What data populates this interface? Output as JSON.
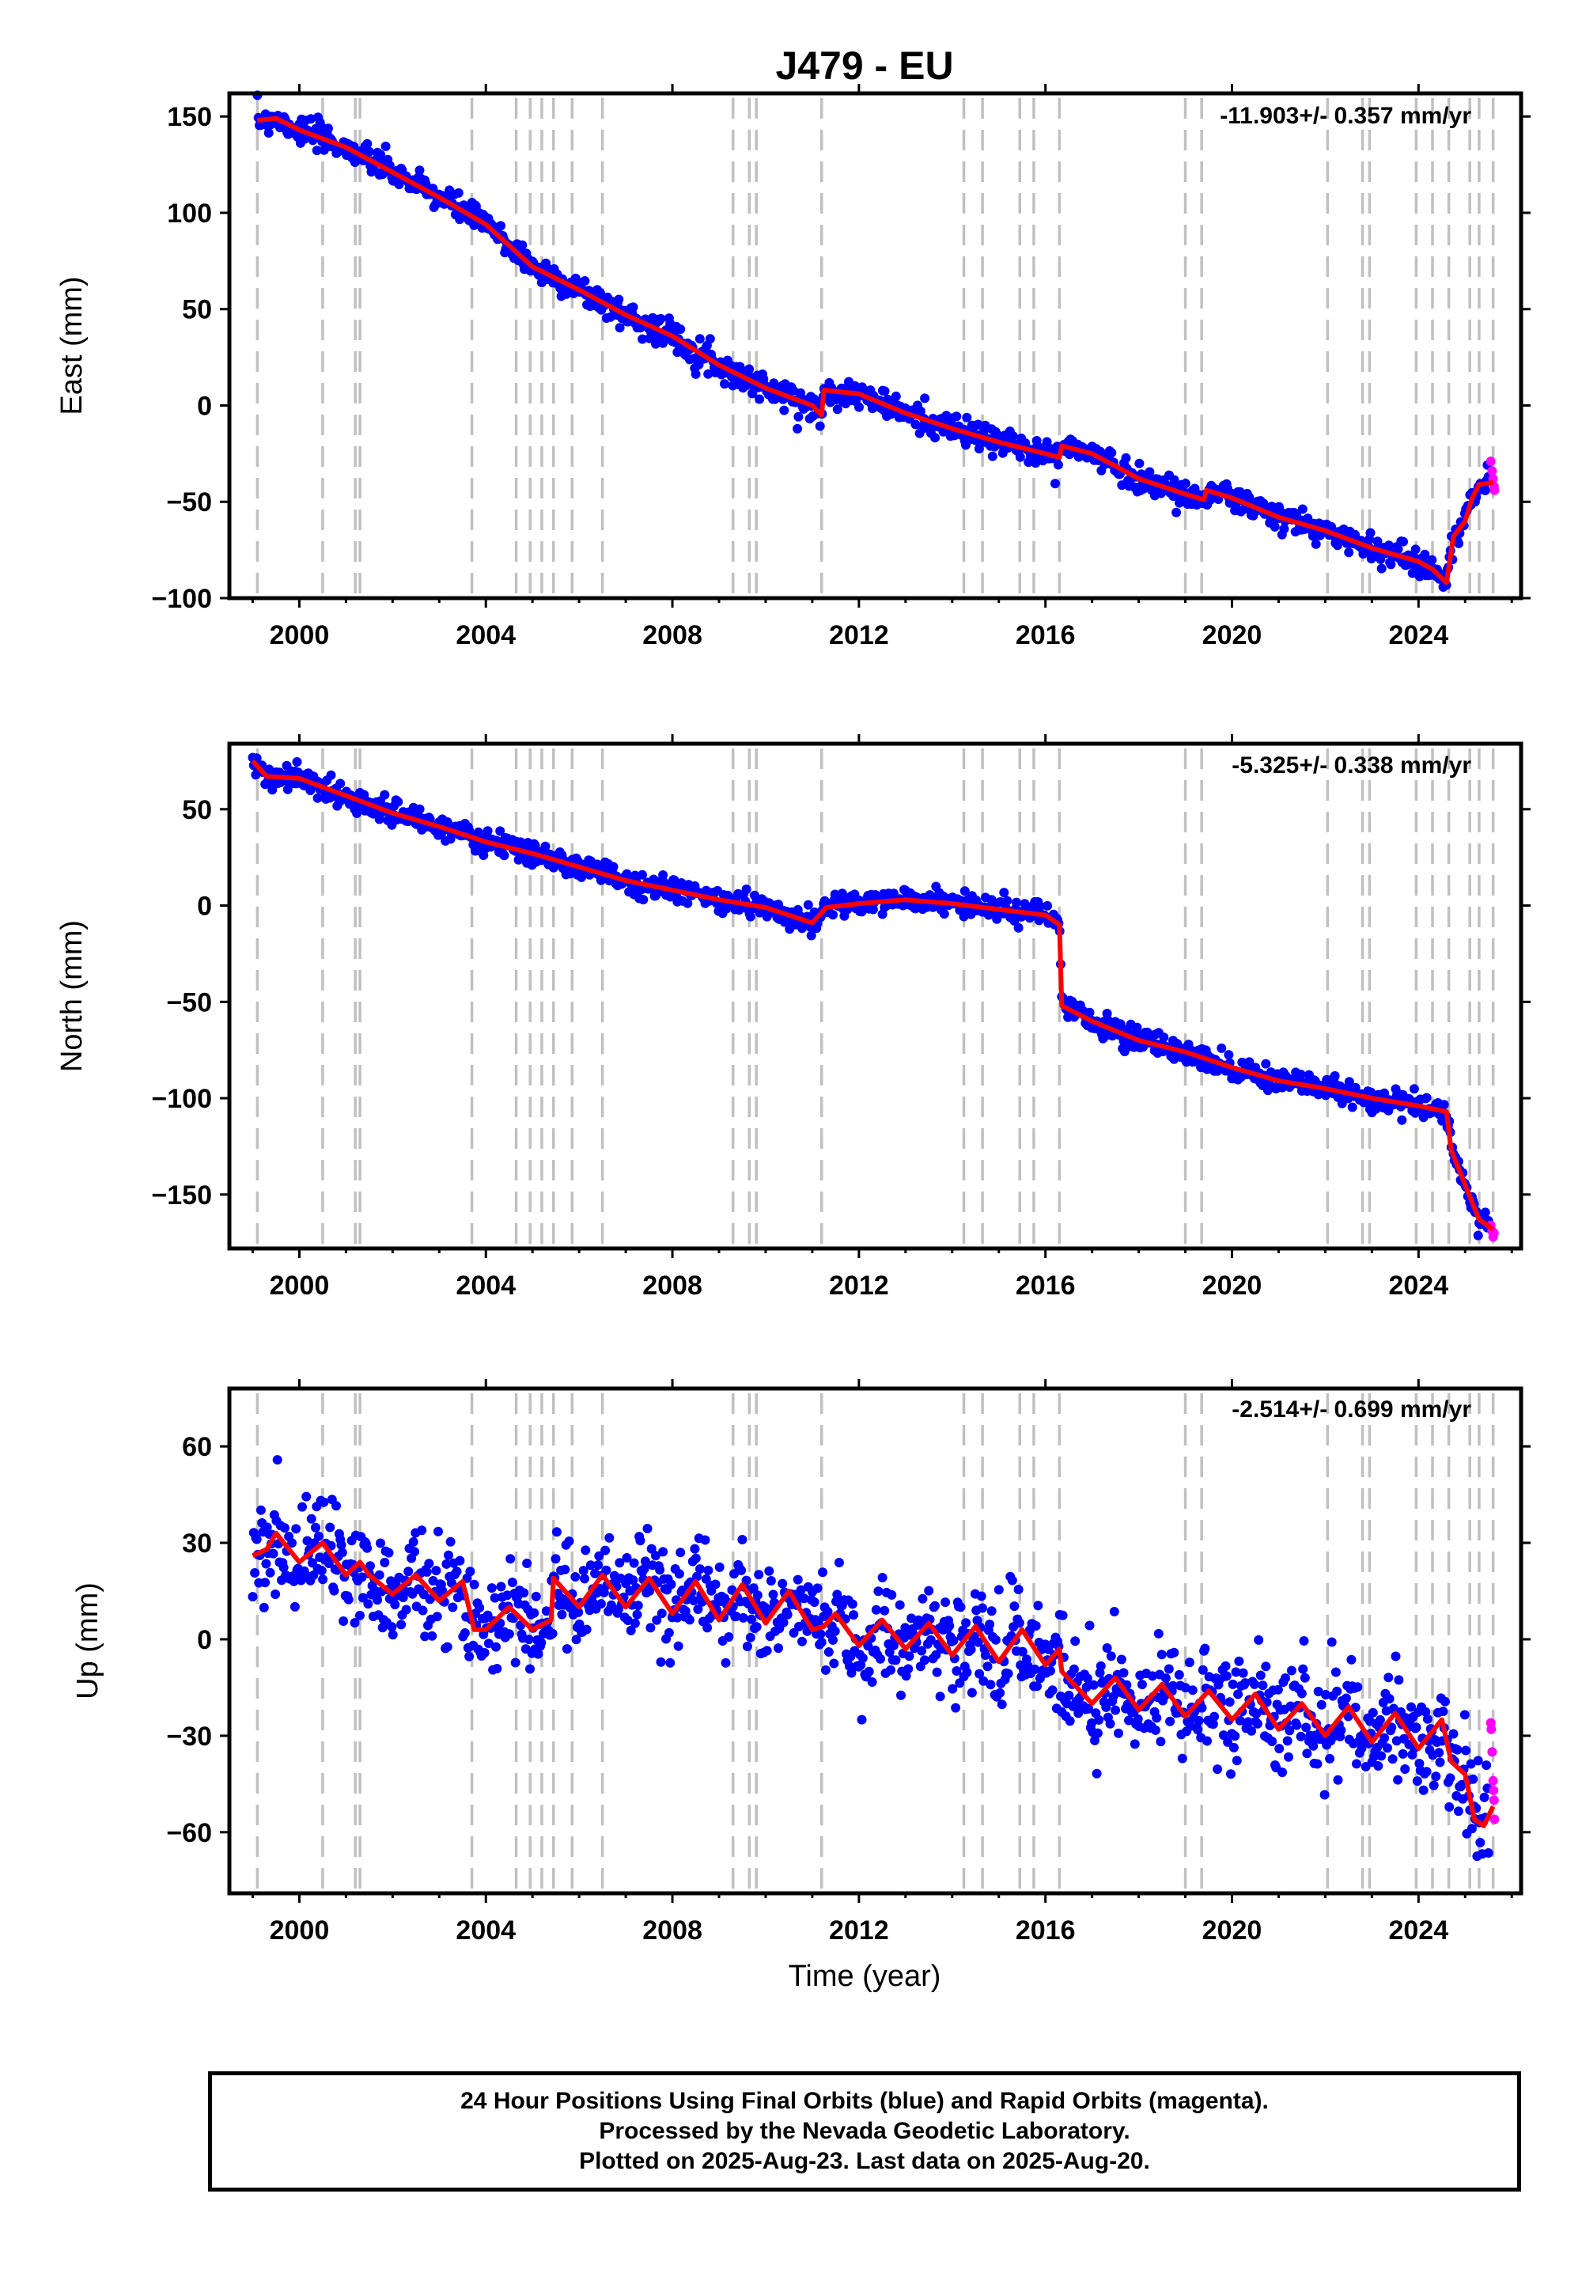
{
  "figure": {
    "title": "J479 - EU",
    "x_axis_label": "Time (year)",
    "colors": {
      "final_orbits": "#0000ff",
      "rapid_orbits": "#ff00ff",
      "model": "#ff0000",
      "equipment_lines": "#c0c0c0"
    }
  },
  "footer": {
    "line1": "24 Hour Positions Using Final Orbits (blue) and Rapid Orbits (magenta).",
    "line2": "Processed by the Nevada Geodetic Laboratory.",
    "line3": "Plotted on 2025-Aug-23. Last data on 2025-Aug-20."
  },
  "chart_data": [
    {
      "type": "scatter",
      "panel": "east",
      "ylabel": "East (mm)",
      "rate_label": "-11.903+/- 0.357 mm/yr",
      "xlim": [
        1998.5,
        2026.2
      ],
      "ylim": [
        -100,
        162
      ],
      "x_ticks": [
        2000,
        2004,
        2008,
        2012,
        2016,
        2020,
        2024
      ],
      "y_ticks": [
        -100,
        -50,
        0,
        50,
        100,
        150
      ],
      "series": [
        {
          "kind": "model",
          "points": [
            [
              1999.1,
              148
            ],
            [
              1999.5,
              149
            ],
            [
              2000.0,
              143
            ],
            [
              2001.0,
              134
            ],
            [
              2002.0,
              121
            ],
            [
              2003.0,
              108
            ],
            [
              2004.0,
              94
            ],
            [
              2005.0,
              72
            ],
            [
              2006.0,
              60
            ],
            [
              2007.0,
              47
            ],
            [
              2008.0,
              36
            ],
            [
              2009.0,
              21
            ],
            [
              2010.0,
              9
            ],
            [
              2011.0,
              0
            ],
            [
              2011.2,
              -5
            ],
            [
              2011.25,
              8
            ],
            [
              2012.0,
              6
            ],
            [
              2013.0,
              -4
            ],
            [
              2014.0,
              -12
            ],
            [
              2015.0,
              -19
            ],
            [
              2016.0,
              -25
            ],
            [
              2016.3,
              -27
            ],
            [
              2016.35,
              -21
            ],
            [
              2017.0,
              -25
            ],
            [
              2018.0,
              -38
            ],
            [
              2019.0,
              -46
            ],
            [
              2019.4,
              -49
            ],
            [
              2019.45,
              -44
            ],
            [
              2020.0,
              -48
            ],
            [
              2021.0,
              -58
            ],
            [
              2022.0,
              -65
            ],
            [
              2023.0,
              -74
            ],
            [
              2024.0,
              -81
            ],
            [
              2024.3,
              -85
            ],
            [
              2024.6,
              -92
            ],
            [
              2024.75,
              -68
            ],
            [
              2025.0,
              -60
            ],
            [
              2025.15,
              -48
            ],
            [
              2025.3,
              -41
            ],
            [
              2025.6,
              -40
            ]
          ]
        },
        {
          "kind": "final_orbits",
          "scatter_mm": 3.5
        },
        {
          "kind": "rapid_orbits",
          "points": [
            [
              2025.55,
              -29
            ],
            [
              2025.58,
              -34
            ],
            [
              2025.6,
              -38
            ],
            [
              2025.62,
              -42
            ],
            [
              2025.63,
              -44
            ]
          ]
        }
      ]
    },
    {
      "type": "scatter",
      "panel": "north",
      "ylabel": "North (mm)",
      "rate_label": "-5.325+/- 0.338 mm/yr",
      "xlim": [
        1998.5,
        2026.2
      ],
      "ylim": [
        -178,
        84
      ],
      "x_ticks": [
        2000,
        2004,
        2008,
        2012,
        2016,
        2020,
        2024
      ],
      "y_ticks": [
        -150,
        -100,
        -50,
        0,
        50
      ],
      "series": [
        {
          "kind": "model",
          "points": [
            [
              1999.0,
              75
            ],
            [
              1999.3,
              67
            ],
            [
              2000.0,
              66
            ],
            [
              2001.0,
              57
            ],
            [
              2002.0,
              48
            ],
            [
              2003.0,
              41
            ],
            [
              2004.0,
              33
            ],
            [
              2005.0,
              27
            ],
            [
              2006.0,
              20
            ],
            [
              2007.0,
              13
            ],
            [
              2008.0,
              8
            ],
            [
              2009.0,
              3
            ],
            [
              2010.0,
              -1
            ],
            [
              2011.0,
              -9
            ],
            [
              2011.3,
              -1
            ],
            [
              2012.0,
              1
            ],
            [
              2013.0,
              3
            ],
            [
              2014.0,
              1
            ],
            [
              2015.0,
              -2
            ],
            [
              2016.0,
              -5
            ],
            [
              2016.3,
              -10
            ],
            [
              2016.35,
              -52
            ],
            [
              2017.0,
              -60
            ],
            [
              2018.0,
              -70
            ],
            [
              2019.0,
              -76
            ],
            [
              2020.0,
              -84
            ],
            [
              2021.0,
              -91
            ],
            [
              2022.0,
              -95
            ],
            [
              2023.0,
              -100
            ],
            [
              2024.0,
              -104
            ],
            [
              2024.6,
              -107
            ],
            [
              2024.7,
              -127
            ],
            [
              2025.0,
              -145
            ],
            [
              2025.3,
              -163
            ],
            [
              2025.6,
              -168
            ]
          ]
        },
        {
          "kind": "final_orbits",
          "scatter_mm": 3.0
        },
        {
          "kind": "rapid_orbits",
          "points": [
            [
              2025.55,
              -166
            ],
            [
              2025.58,
              -169
            ],
            [
              2025.6,
              -172
            ],
            [
              2025.62,
              -170
            ]
          ]
        }
      ]
    },
    {
      "type": "scatter",
      "panel": "up",
      "ylabel": "Up (mm)",
      "rate_label": "-2.514+/- 0.699 mm/yr",
      "xlim": [
        1998.5,
        2026.2
      ],
      "ylim": [
        -79,
        78
      ],
      "x_ticks": [
        2000,
        2004,
        2008,
        2012,
        2016,
        2020,
        2024
      ],
      "y_ticks": [
        -60,
        -30,
        0,
        30,
        60
      ],
      "series": [
        {
          "kind": "model",
          "points": [
            [
              1999.0,
              26
            ],
            [
              1999.3,
              28
            ],
            [
              1999.5,
              33
            ],
            [
              2000.0,
              24
            ],
            [
              2000.5,
              30
            ],
            [
              2001.0,
              20
            ],
            [
              2001.3,
              24
            ],
            [
              2001.5,
              20
            ],
            [
              2002.0,
              14
            ],
            [
              2002.5,
              20
            ],
            [
              2003.0,
              12
            ],
            [
              2003.5,
              18
            ],
            [
              2003.75,
              3
            ],
            [
              2004.0,
              3
            ],
            [
              2004.5,
              10
            ],
            [
              2005.0,
              3
            ],
            [
              2005.4,
              6
            ],
            [
              2005.45,
              19
            ],
            [
              2006.0,
              10
            ],
            [
              2006.5,
              20
            ],
            [
              2007.0,
              10
            ],
            [
              2007.5,
              19
            ],
            [
              2008.0,
              8
            ],
            [
              2008.5,
              18
            ],
            [
              2009.0,
              6
            ],
            [
              2009.5,
              17
            ],
            [
              2010.0,
              5
            ],
            [
              2010.5,
              15
            ],
            [
              2011.0,
              3
            ],
            [
              2011.25,
              4
            ],
            [
              2011.5,
              8
            ],
            [
              2012.0,
              -2
            ],
            [
              2012.5,
              6
            ],
            [
              2013.0,
              -3
            ],
            [
              2013.5,
              5
            ],
            [
              2014.0,
              -5
            ],
            [
              2014.5,
              4
            ],
            [
              2015.0,
              -7
            ],
            [
              2015.5,
              3
            ],
            [
              2016.0,
              -8
            ],
            [
              2016.3,
              -3
            ],
            [
              2016.35,
              -10
            ],
            [
              2017.0,
              -20
            ],
            [
              2017.5,
              -12
            ],
            [
              2018.0,
              -22
            ],
            [
              2018.5,
              -14
            ],
            [
              2019.0,
              -24
            ],
            [
              2019.5,
              -16
            ],
            [
              2020.0,
              -25
            ],
            [
              2020.5,
              -17
            ],
            [
              2021.0,
              -28
            ],
            [
              2021.5,
              -20
            ],
            [
              2022.0,
              -30
            ],
            [
              2022.5,
              -21
            ],
            [
              2023.0,
              -32
            ],
            [
              2023.5,
              -23
            ],
            [
              2024.0,
              -34
            ],
            [
              2024.5,
              -25
            ],
            [
              2024.7,
              -38
            ],
            [
              2025.0,
              -42
            ],
            [
              2025.2,
              -56
            ],
            [
              2025.4,
              -58
            ],
            [
              2025.6,
              -52
            ]
          ]
        },
        {
          "kind": "final_orbits",
          "scatter_mm": 8.0
        },
        {
          "kind": "rapid_orbits",
          "points": [
            [
              2025.55,
              -26
            ],
            [
              2025.56,
              -28
            ],
            [
              2025.58,
              -35
            ],
            [
              2025.6,
              -44
            ],
            [
              2025.61,
              -47
            ],
            [
              2025.62,
              -50
            ],
            [
              2025.63,
              -56
            ]
          ]
        }
      ]
    }
  ],
  "equipment_change_years": [
    1999.1,
    2000.5,
    2001.2,
    2001.3,
    2003.7,
    2004.65,
    2004.95,
    2005.2,
    2005.45,
    2005.85,
    2006.5,
    2009.3,
    2009.65,
    2009.8,
    2011.2,
    2014.25,
    2014.65,
    2015.45,
    2015.75,
    2016.3,
    2019.0,
    2019.35,
    2022.05,
    2022.8,
    2022.95,
    2023.95,
    2024.3,
    2024.65,
    2025.1,
    2025.3,
    2025.6
  ]
}
